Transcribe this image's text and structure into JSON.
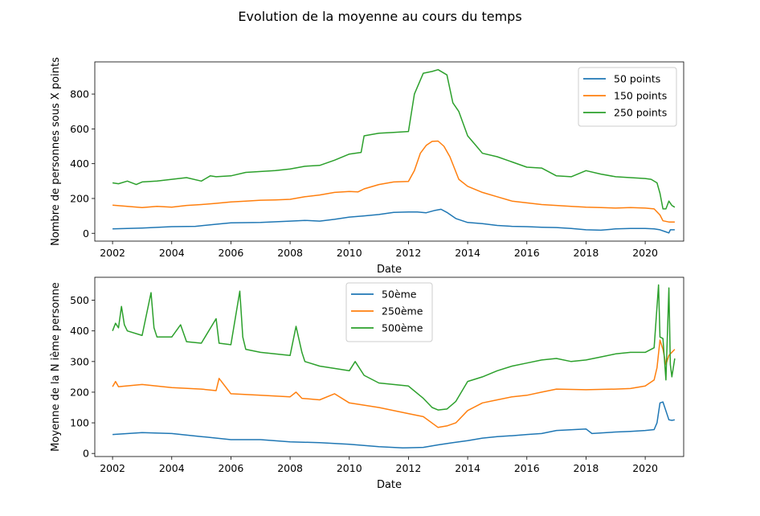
{
  "figure": {
    "suptitle": "Evolution de la moyenne au cours du temps"
  },
  "chart_data": [
    {
      "type": "line",
      "xlabel": "Date",
      "ylabel": "Nombre de personnes sous X points",
      "xlim": [
        2001.4,
        2021.3
      ],
      "ylim": [
        -45,
        985
      ],
      "xticks": [
        "2002",
        "2004",
        "2006",
        "2008",
        "2010",
        "2012",
        "2014",
        "2016",
        "2018",
        "2020"
      ],
      "yticks": [
        0,
        200,
        400,
        600,
        800
      ],
      "legend_position": "upper right",
      "series": [
        {
          "name": "50 points",
          "color": "#1f77b4",
          "x": [
            2002.0,
            2003.0,
            2004.0,
            2004.8,
            2005.5,
            2006.0,
            2007.0,
            2008.0,
            2008.5,
            2009.0,
            2009.5,
            2010.0,
            2010.5,
            2011.0,
            2011.5,
            2012.0,
            2012.3,
            2012.6,
            2012.9,
            2013.1,
            2013.3,
            2013.6,
            2014.0,
            2014.5,
            2015.0,
            2015.5,
            2016.0,
            2016.5,
            2017.0,
            2017.5,
            2018.0,
            2018.5,
            2019.0,
            2019.5,
            2020.0,
            2020.3,
            2020.5,
            2020.7,
            2020.8,
            2020.85,
            2021.0
          ],
          "y": [
            25,
            30,
            38,
            40,
            52,
            60,
            62,
            70,
            74,
            70,
            80,
            93,
            100,
            108,
            120,
            122,
            122,
            118,
            132,
            138,
            120,
            85,
            62,
            55,
            45,
            40,
            38,
            35,
            33,
            28,
            20,
            18,
            25,
            28,
            28,
            25,
            20,
            8,
            2,
            20,
            20
          ]
        },
        {
          "name": "150 points",
          "color": "#ff7f0e",
          "x": [
            2002.0,
            2002.5,
            2003.0,
            2003.5,
            2004.0,
            2004.5,
            2005.0,
            2005.5,
            2006.0,
            2006.5,
            2007.0,
            2007.5,
            2008.0,
            2008.5,
            2009.0,
            2009.5,
            2010.0,
            2010.3,
            2010.5,
            2011.0,
            2011.5,
            2012.0,
            2012.2,
            2012.4,
            2012.6,
            2012.8,
            2013.0,
            2013.2,
            2013.4,
            2013.7,
            2014.0,
            2014.5,
            2015.0,
            2015.5,
            2016.0,
            2016.5,
            2017.0,
            2017.5,
            2018.0,
            2018.5,
            2019.0,
            2019.5,
            2020.0,
            2020.3,
            2020.5,
            2020.6,
            2020.8,
            2021.0
          ],
          "y": [
            162,
            155,
            148,
            155,
            150,
            160,
            165,
            172,
            180,
            185,
            190,
            192,
            195,
            210,
            220,
            235,
            240,
            238,
            255,
            280,
            295,
            298,
            360,
            460,
            505,
            528,
            530,
            500,
            440,
            310,
            270,
            235,
            210,
            185,
            175,
            165,
            160,
            155,
            150,
            148,
            145,
            148,
            145,
            140,
            105,
            72,
            65,
            65
          ]
        },
        {
          "name": "250 points",
          "color": "#2ca02c",
          "x": [
            2002.0,
            2002.2,
            2002.5,
            2002.8,
            2003.0,
            2003.5,
            2004.0,
            2004.5,
            2005.0,
            2005.3,
            2005.5,
            2006.0,
            2006.5,
            2007.0,
            2007.5,
            2008.0,
            2008.5,
            2009.0,
            2009.5,
            2010.0,
            2010.4,
            2010.5,
            2011.0,
            2011.5,
            2012.0,
            2012.2,
            2012.4,
            2012.5,
            2012.8,
            2013.0,
            2013.3,
            2013.5,
            2013.7,
            2014.0,
            2014.3,
            2014.5,
            2015.0,
            2015.5,
            2016.0,
            2016.5,
            2017.0,
            2017.5,
            2018.0,
            2018.5,
            2019.0,
            2019.5,
            2020.0,
            2020.2,
            2020.4,
            2020.5,
            2020.6,
            2020.7,
            2020.8,
            2020.9,
            2021.0
          ],
          "y": [
            290,
            285,
            300,
            280,
            295,
            300,
            310,
            320,
            300,
            330,
            325,
            330,
            350,
            355,
            360,
            370,
            385,
            390,
            420,
            455,
            465,
            560,
            575,
            580,
            585,
            800,
            880,
            920,
            930,
            940,
            910,
            750,
            700,
            560,
            500,
            460,
            440,
            410,
            380,
            375,
            330,
            325,
            360,
            340,
            325,
            320,
            315,
            310,
            290,
            230,
            140,
            140,
            185,
            160,
            150
          ]
        }
      ]
    },
    {
      "type": "line",
      "xlabel": "Date",
      "ylabel": "Moyenne de la N ième personne",
      "xlim": [
        2001.4,
        2021.3
      ],
      "ylim": [
        -10,
        575
      ],
      "xticks": [
        "2002",
        "2004",
        "2006",
        "2008",
        "2010",
        "2012",
        "2014",
        "2016",
        "2018",
        "2020"
      ],
      "yticks": [
        0,
        100,
        200,
        300,
        400,
        500
      ],
      "legend_position": "upper center",
      "series": [
        {
          "name": "50ème",
          "color": "#1f77b4",
          "x": [
            2002.0,
            2003.0,
            2004.0,
            2005.0,
            2006.0,
            2007.0,
            2008.0,
            2009.0,
            2010.0,
            2011.0,
            2011.8,
            2012.5,
            2013.0,
            2013.5,
            2014.0,
            2014.5,
            2015.0,
            2015.5,
            2016.0,
            2016.5,
            2017.0,
            2018.0,
            2018.2,
            2019.0,
            2019.5,
            2020.0,
            2020.3,
            2020.4,
            2020.5,
            2020.6,
            2020.8,
            2020.9,
            2021.0
          ],
          "y": [
            62,
            68,
            65,
            55,
            45,
            45,
            38,
            35,
            30,
            22,
            18,
            20,
            28,
            35,
            42,
            50,
            55,
            58,
            62,
            65,
            75,
            80,
            65,
            70,
            72,
            75,
            78,
            100,
            165,
            168,
            110,
            108,
            110
          ]
        },
        {
          "name": "250ème",
          "color": "#ff7f0e",
          "x": [
            2002.0,
            2002.1,
            2002.2,
            2003.0,
            2004.0,
            2005.0,
            2005.5,
            2005.6,
            2006.0,
            2007.0,
            2008.0,
            2008.2,
            2008.4,
            2009.0,
            2009.5,
            2010.0,
            2011.0,
            2012.0,
            2012.5,
            2013.0,
            2013.3,
            2013.6,
            2014.0,
            2014.5,
            2015.0,
            2015.5,
            2016.0,
            2016.5,
            2017.0,
            2018.0,
            2019.0,
            2019.5,
            2020.0,
            2020.3,
            2020.4,
            2020.5,
            2020.6,
            2020.7,
            2020.8,
            2021.0
          ],
          "y": [
            218,
            235,
            218,
            225,
            215,
            210,
            205,
            245,
            195,
            190,
            185,
            200,
            180,
            175,
            195,
            165,
            150,
            130,
            120,
            85,
            90,
            100,
            140,
            165,
            175,
            185,
            190,
            200,
            210,
            208,
            210,
            212,
            220,
            240,
            280,
            370,
            340,
            290,
            320,
            340
          ]
        },
        {
          "name": "500ème",
          "color": "#2ca02c",
          "x": [
            2002.0,
            2002.1,
            2002.2,
            2002.3,
            2002.4,
            2002.5,
            2003.0,
            2003.3,
            2003.4,
            2003.5,
            2004.0,
            2004.3,
            2004.5,
            2005.0,
            2005.5,
            2005.6,
            2006.0,
            2006.3,
            2006.4,
            2006.5,
            2007.0,
            2008.0,
            2008.2,
            2008.4,
            2008.5,
            2009.0,
            2010.0,
            2010.2,
            2010.5,
            2011.0,
            2012.0,
            2012.5,
            2012.8,
            2013.0,
            2013.3,
            2013.6,
            2014.0,
            2014.5,
            2015.0,
            2015.5,
            2016.0,
            2016.5,
            2017.0,
            2017.5,
            2018.0,
            2018.5,
            2019.0,
            2019.5,
            2020.0,
            2020.3,
            2020.45,
            2020.5,
            2020.6,
            2020.7,
            2020.8,
            2020.85,
            2020.9,
            2021.0
          ],
          "y": [
            400,
            425,
            410,
            480,
            420,
            400,
            385,
            525,
            410,
            380,
            380,
            420,
            365,
            360,
            440,
            360,
            355,
            530,
            380,
            340,
            330,
            320,
            415,
            330,
            300,
            285,
            270,
            300,
            255,
            230,
            220,
            180,
            150,
            142,
            145,
            170,
            235,
            250,
            270,
            285,
            295,
            305,
            310,
            300,
            305,
            315,
            325,
            330,
            330,
            345,
            550,
            380,
            375,
            240,
            540,
            290,
            250,
            310
          ]
        }
      ]
    }
  ]
}
